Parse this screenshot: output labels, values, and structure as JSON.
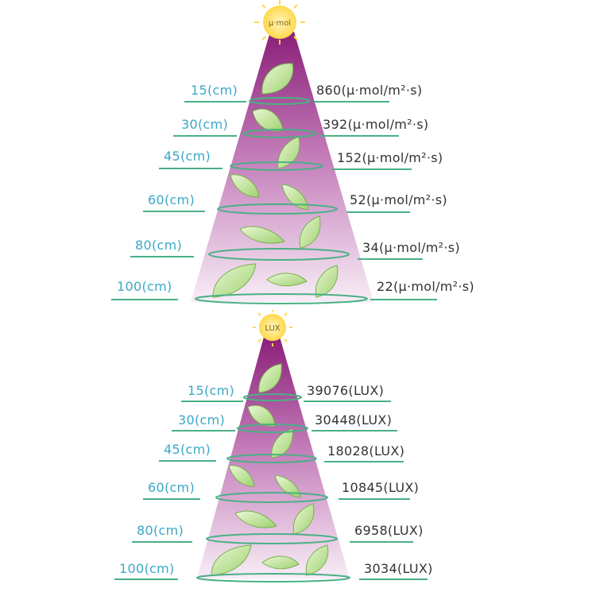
{
  "colors": {
    "cone_top": "#8a1f78",
    "cone_bottom": "#f6e8f3",
    "ring": "#4bb085",
    "distance_text": "#3aa8c8",
    "value_text": "#333333",
    "sun": "#ffe36a"
  },
  "icons": {
    "sun": "sun-icon",
    "leaf": "leaf-icon"
  },
  "top_diagram": {
    "sun_label": "μ·mol",
    "rows": [
      {
        "distance": "15(cm)",
        "value": "860(μ·mol/m²·s)"
      },
      {
        "distance": "30(cm)",
        "value": "392(μ·mol/m²·s)"
      },
      {
        "distance": "45(cm)",
        "value": "152(μ·mol/m²·s)"
      },
      {
        "distance": "60(cm)",
        "value": "52(μ·mol/m²·s)"
      },
      {
        "distance": "80(cm)",
        "value": "34(μ·mol/m²·s)"
      },
      {
        "distance": "100(cm)",
        "value": "22(μ·mol/m²·s)"
      }
    ]
  },
  "bottom_diagram": {
    "sun_label": "LUX",
    "rows": [
      {
        "distance": "15(cm)",
        "value": "39076(LUX)"
      },
      {
        "distance": "30(cm)",
        "value": "30448(LUX)"
      },
      {
        "distance": "45(cm)",
        "value": "18028(LUX)"
      },
      {
        "distance": "60(cm)",
        "value": "10845(LUX)"
      },
      {
        "distance": "80(cm)",
        "value": "6958(LUX)"
      },
      {
        "distance": "100(cm)",
        "value": "3034(LUX)"
      }
    ]
  }
}
